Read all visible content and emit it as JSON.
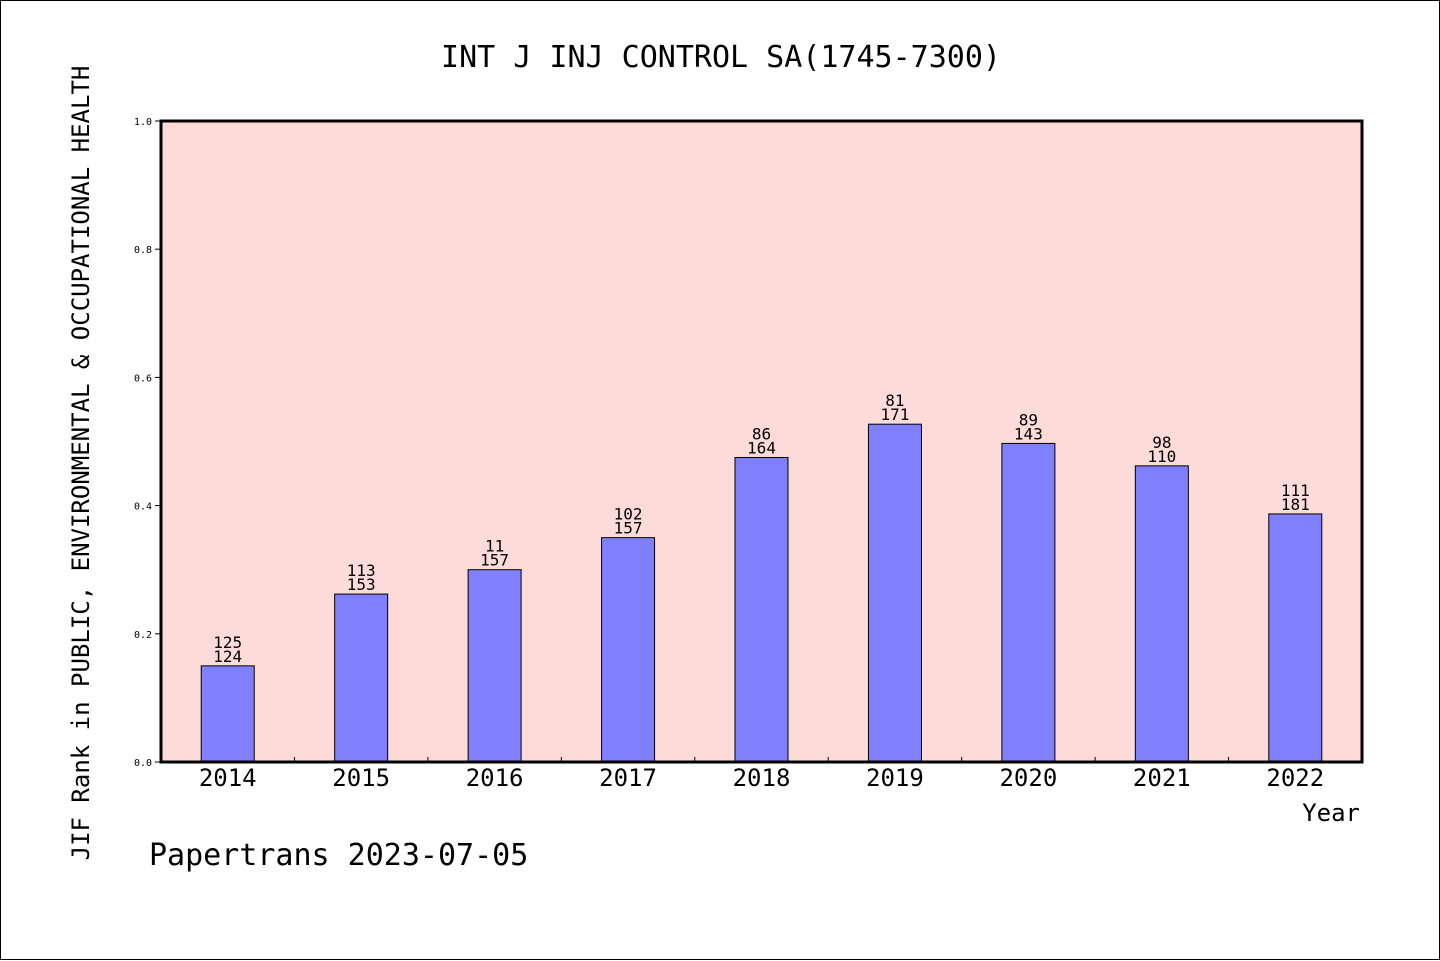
{
  "chart_data": {
    "type": "bar",
    "title": "INT J INJ CONTROL SA(1745-7300)",
    "xlabel": "Year",
    "ylabel": "JIF Rank in PUBLIC, ENVIRONMENTAL & OCCUPATIONAL HEALTH",
    "ylim": [
      0.0,
      1.0
    ],
    "yticks": [
      "0.0",
      "0.2",
      "0.4",
      "0.6",
      "0.8",
      "1.0"
    ],
    "categories": [
      "2014",
      "2015",
      "2016",
      "2017",
      "2018",
      "2019",
      "2020",
      "2021",
      "2022"
    ],
    "values": [
      0.15,
      0.262,
      0.3,
      0.35,
      0.475,
      0.527,
      0.497,
      0.462,
      0.387
    ],
    "labels_top": [
      "125",
      "113",
      "11",
      "102",
      "86",
      "81",
      "89",
      "98",
      "111"
    ],
    "labels_bottom": [
      "124",
      "153",
      "157",
      "157",
      "164",
      "171",
      "143",
      "110",
      "181"
    ],
    "grid": false,
    "plot_background": "#fddbd8",
    "bar_color": "#8080ff"
  },
  "footer": {
    "credit": "Papertrans 2023-07-05"
  }
}
